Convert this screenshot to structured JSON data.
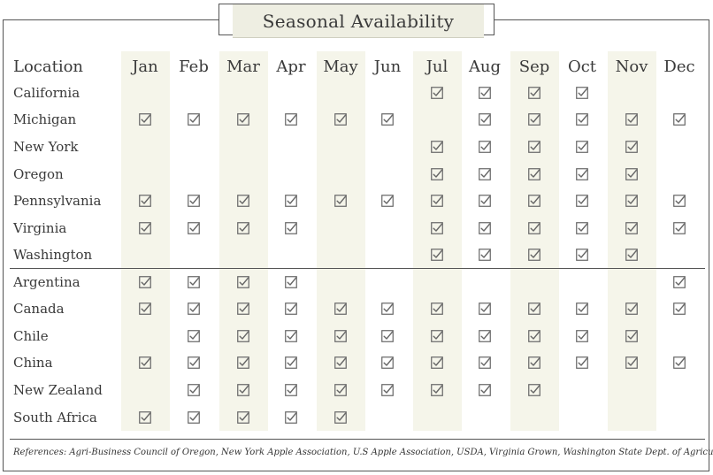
{
  "title": "Seasonal Availability",
  "location_header": "Location",
  "months": [
    "Jan",
    "Feb",
    "Mar",
    "Apr",
    "May",
    "Jun",
    "Jul",
    "Aug",
    "Sep",
    "Oct",
    "Nov",
    "Dec"
  ],
  "groups": [
    {
      "rows": [
        {
          "location": "California",
          "months": [
            0,
            0,
            0,
            0,
            0,
            0,
            1,
            1,
            1,
            1,
            0,
            0
          ]
        },
        {
          "location": "Michigan",
          "months": [
            1,
            1,
            1,
            1,
            1,
            1,
            0,
            1,
            1,
            1,
            1,
            1
          ]
        },
        {
          "location": "New York",
          "months": [
            0,
            0,
            0,
            0,
            0,
            0,
            1,
            1,
            1,
            1,
            1,
            0
          ]
        },
        {
          "location": "Oregon",
          "months": [
            0,
            0,
            0,
            0,
            0,
            0,
            1,
            1,
            1,
            1,
            1,
            0
          ]
        },
        {
          "location": "Pennsylvania",
          "months": [
            1,
            1,
            1,
            1,
            1,
            1,
            1,
            1,
            1,
            1,
            1,
            1
          ]
        },
        {
          "location": "Virginia",
          "months": [
            1,
            1,
            1,
            1,
            0,
            0,
            1,
            1,
            1,
            1,
            1,
            1
          ]
        },
        {
          "location": "Washington",
          "months": [
            0,
            0,
            0,
            0,
            0,
            0,
            1,
            1,
            1,
            1,
            1,
            0
          ]
        }
      ]
    },
    {
      "rows": [
        {
          "location": "Argentina",
          "months": [
            1,
            1,
            1,
            1,
            0,
            0,
            0,
            0,
            0,
            0,
            0,
            1
          ]
        },
        {
          "location": "Canada",
          "months": [
            1,
            1,
            1,
            1,
            1,
            1,
            1,
            1,
            1,
            1,
            1,
            1
          ]
        },
        {
          "location": "Chile",
          "months": [
            0,
            1,
            1,
            1,
            1,
            1,
            1,
            1,
            1,
            1,
            1,
            0
          ]
        },
        {
          "location": "China",
          "months": [
            1,
            1,
            1,
            1,
            1,
            1,
            1,
            1,
            1,
            1,
            1,
            1
          ]
        },
        {
          "location": "New Zealand",
          "months": [
            0,
            1,
            1,
            1,
            1,
            1,
            1,
            1,
            1,
            0,
            0,
            0
          ]
        },
        {
          "location": "South Africa",
          "months": [
            1,
            1,
            1,
            1,
            1,
            0,
            0,
            0,
            0,
            0,
            0,
            0
          ]
        }
      ]
    }
  ],
  "references": "References: Agri-Business Council of Oregon, New York Apple Association, U.S Apple Association, USDA, Virginia Grown, Washington State Dept. of Agriculture.",
  "colors": {
    "shaded_column": "#f5f5ea",
    "title_fill": "#eeeee2",
    "border": "#555555",
    "check": "#666666"
  },
  "icons": {
    "available": "checked-box-icon"
  }
}
